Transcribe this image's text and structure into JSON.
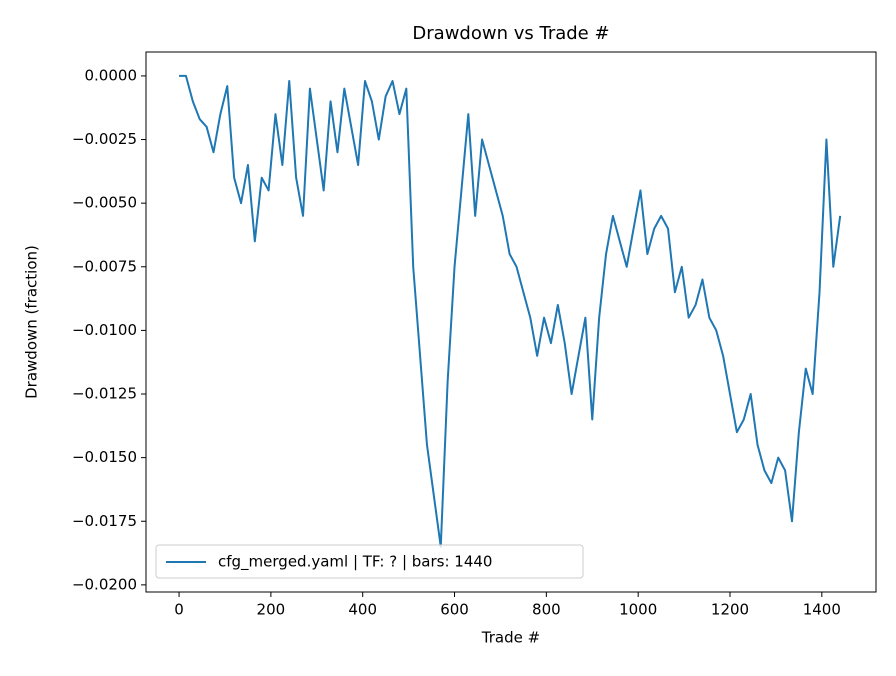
{
  "chart_data": {
    "type": "line",
    "title": "Drawdown vs Trade #",
    "xlabel": "Trade #",
    "ylabel": "Drawdown (fraction)",
    "x": [
      0,
      15,
      30,
      45,
      60,
      75,
      90,
      105,
      120,
      135,
      150,
      165,
      180,
      195,
      210,
      225,
      240,
      255,
      270,
      285,
      300,
      315,
      330,
      345,
      360,
      375,
      390,
      405,
      420,
      435,
      450,
      465,
      480,
      495,
      510,
      525,
      540,
      555,
      570,
      585,
      600,
      615,
      630,
      645,
      660,
      675,
      690,
      705,
      720,
      735,
      750,
      765,
      780,
      795,
      810,
      825,
      840,
      855,
      870,
      885,
      900,
      915,
      930,
      945,
      960,
      975,
      990,
      1005,
      1020,
      1035,
      1050,
      1065,
      1080,
      1095,
      1110,
      1125,
      1140,
      1155,
      1170,
      1185,
      1200,
      1215,
      1230,
      1245,
      1260,
      1275,
      1290,
      1305,
      1320,
      1335,
      1350,
      1365,
      1380,
      1395,
      1410,
      1425,
      1440
    ],
    "series": [
      {
        "name": "cfg_merged.yaml | TF: ? | bars: 1440",
        "color": "#1f77b4",
        "values": [
          0,
          0,
          -0.001,
          -0.0017,
          -0.002,
          -0.003,
          -0.0015,
          -0.0004,
          -0.004,
          -0.005,
          -0.0035,
          -0.0065,
          -0.004,
          -0.0045,
          -0.0015,
          -0.0035,
          -0.0002,
          -0.004,
          -0.0055,
          -0.0005,
          -0.0025,
          -0.0045,
          -0.001,
          -0.003,
          -0.0005,
          -0.002,
          -0.0035,
          -0.0002,
          -0.001,
          -0.0025,
          -0.0008,
          -0.0002,
          -0.0015,
          -0.0005,
          -0.0075,
          -0.011,
          -0.0145,
          -0.0165,
          -0.0185,
          -0.012,
          -0.0075,
          -0.0045,
          -0.0015,
          -0.0055,
          -0.0025,
          -0.0035,
          -0.0045,
          -0.0055,
          -0.007,
          -0.0075,
          -0.0085,
          -0.0095,
          -0.011,
          -0.0095,
          -0.0105,
          -0.009,
          -0.0105,
          -0.0125,
          -0.011,
          -0.0095,
          -0.0135,
          -0.0095,
          -0.007,
          -0.0055,
          -0.0065,
          -0.0075,
          -0.006,
          -0.0045,
          -0.007,
          -0.006,
          -0.0055,
          -0.006,
          -0.0085,
          -0.0075,
          -0.0095,
          -0.009,
          -0.008,
          -0.0095,
          -0.01,
          -0.011,
          -0.0125,
          -0.014,
          -0.0135,
          -0.0125,
          -0.0145,
          -0.0155,
          -0.016,
          -0.015,
          -0.0155,
          -0.0175,
          -0.014,
          -0.0115,
          -0.0125,
          -0.0085,
          -0.0025,
          -0.0075,
          -0.0055
        ]
      }
    ],
    "xlim": [
      -72,
      1518
    ],
    "xticks": [
      0,
      200,
      400,
      600,
      800,
      1000,
      1200,
      1400
    ],
    "ylim": [
      -0.02028,
      0.00094
    ],
    "yticks": [
      {
        "value": 0,
        "label": "0.0000"
      },
      {
        "value": -0.0025,
        "label": "−0.0025"
      },
      {
        "value": -0.005,
        "label": "−0.0050"
      },
      {
        "value": -0.0075,
        "label": "−0.0075"
      },
      {
        "value": -0.01,
        "label": "−0.0100"
      },
      {
        "value": -0.0125,
        "label": "−0.0125"
      },
      {
        "value": -0.015,
        "label": "−0.0150"
      },
      {
        "value": -0.0175,
        "label": "−0.0175"
      },
      {
        "value": -0.02,
        "label": "−0.0200"
      }
    ],
    "legend": "lower left"
  }
}
